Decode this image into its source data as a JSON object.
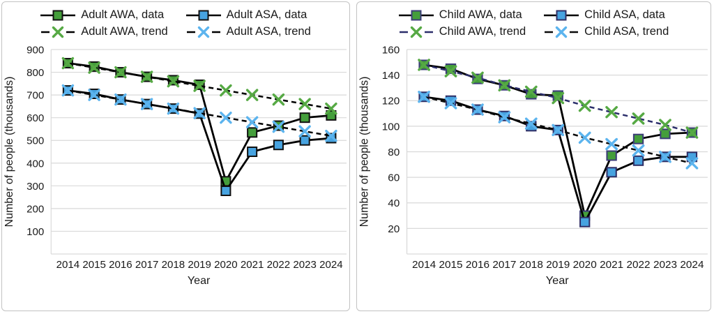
{
  "figure": {
    "background": "#ffffff",
    "panel_border_color": "#c2c2c2",
    "grid_color": "#d9d9d9",
    "text_color": "#1a1a1a"
  },
  "chart_data": [
    {
      "type": "line",
      "panel": "adult",
      "xlabel": "Year",
      "ylabel": "Number of people (thousands)",
      "x": [
        "2014",
        "2015",
        "2016",
        "2017",
        "2018",
        "2019",
        "2020",
        "2021",
        "2022",
        "2023",
        "2024"
      ],
      "ylim": [
        0,
        900
      ],
      "ytick_step": 100,
      "ytick_labels": [
        "100",
        "200",
        "300",
        "400",
        "500",
        "600",
        "700",
        "800",
        "900"
      ],
      "grid": true,
      "legend_position": "top",
      "series": [
        {
          "name": "Adult AWA, data",
          "role": "data",
          "marker": "square",
          "marker_fill": "#449e3b",
          "marker_stroke": "#111111",
          "line_color": "#000000",
          "line_style": "solid",
          "values": [
            840,
            825,
            800,
            780,
            765,
            745,
            320,
            535,
            565,
            600,
            610
          ]
        },
        {
          "name": "Adult ASA, data",
          "role": "data",
          "marker": "square",
          "marker_fill": "#47a3e0",
          "marker_stroke": "#111111",
          "line_color": "#000000",
          "line_style": "solid",
          "values": [
            720,
            705,
            680,
            660,
            640,
            618,
            278,
            450,
            480,
            500,
            510
          ]
        },
        {
          "name": "Adult AWA, trend",
          "role": "trend",
          "marker": "x",
          "marker_color": "#56a944",
          "line_color": "#000000",
          "line_style": "dashed",
          "values": [
            840,
            820,
            800,
            780,
            760,
            740,
            720,
            700,
            680,
            660,
            640
          ]
        },
        {
          "name": "Adult ASA, trend",
          "role": "trend",
          "marker": "x",
          "marker_color": "#5cb4ee",
          "line_color": "#000000",
          "line_style": "dashed",
          "values": [
            720,
            700,
            680,
            660,
            640,
            620,
            600,
            580,
            560,
            540,
            520
          ]
        }
      ]
    },
    {
      "type": "line",
      "panel": "child",
      "xlabel": "Year",
      "ylabel": "Number of people (thousands)",
      "x": [
        "2014",
        "2015",
        "2016",
        "2017",
        "2018",
        "2019",
        "2020",
        "2021",
        "2022",
        "2023",
        "2024"
      ],
      "ylim": [
        0,
        160
      ],
      "ytick_step": 20,
      "ytick_labels": [
        "20",
        "40",
        "60",
        "80",
        "100",
        "120",
        "140",
        "160"
      ],
      "grid": true,
      "legend_position": "top",
      "series": [
        {
          "name": "Child AWA, data",
          "role": "data",
          "marker": "square",
          "marker_fill": "#449e3b",
          "marker_stroke": "#3c3c78",
          "line_color": "#000000",
          "line_style": "solid",
          "values": [
            148,
            145,
            137,
            132,
            125,
            124,
            30,
            77,
            90,
            94,
            95
          ]
        },
        {
          "name": "Child ASA, data",
          "role": "data",
          "marker": "square",
          "marker_fill": "#47a3e0",
          "marker_stroke": "#2f2f66",
          "line_color": "#000000",
          "line_style": "solid",
          "values": [
            123,
            120,
            113,
            108,
            100,
            97,
            25,
            64,
            73,
            76,
            76
          ]
        },
        {
          "name": "Child AWA, trend",
          "role": "trend",
          "marker": "x",
          "marker_color": "#56a944",
          "line_color": "#2b2e6b",
          "line_style": "dashed",
          "values": [
            148,
            143,
            138,
            132,
            127,
            122,
            116,
            111,
            106,
            101,
            95
          ]
        },
        {
          "name": "Child ASA, trend",
          "role": "trend",
          "marker": "x",
          "marker_color": "#5cb4ee",
          "line_color": "#0a0a0a",
          "line_style": "dashed",
          "values": [
            123,
            118,
            113,
            107,
            102,
            97,
            91,
            86,
            81,
            76,
            71
          ]
        }
      ]
    }
  ]
}
